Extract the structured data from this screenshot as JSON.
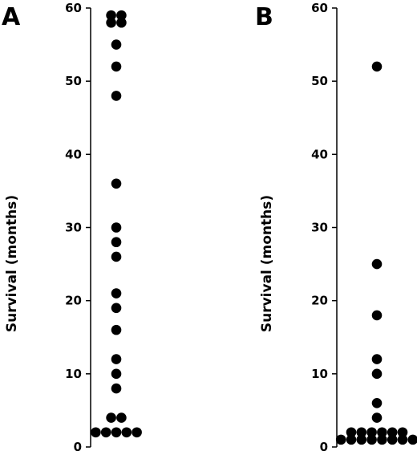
{
  "chart_data": [
    {
      "type": "scatter",
      "panel_label": "A",
      "ylabel": "Survival (months)",
      "xlabel": "",
      "ylim": [
        0,
        60
      ],
      "yticks": [
        0,
        10,
        20,
        30,
        40,
        50,
        60
      ],
      "tick_labels": [
        "0",
        "10",
        "20",
        "30",
        "40",
        "50",
        "60"
      ],
      "values": [
        59,
        59,
        58,
        58,
        55,
        52,
        48,
        36,
        30,
        28,
        26,
        21,
        19,
        16,
        12,
        10,
        8,
        4,
        4,
        2,
        2,
        2,
        2,
        2
      ],
      "grid": false,
      "color": "#000000"
    },
    {
      "type": "scatter",
      "panel_label": "B",
      "ylabel": "Survival (months)",
      "xlabel": "",
      "ylim": [
        0,
        60
      ],
      "yticks": [
        0,
        10,
        20,
        30,
        40,
        50,
        60
      ],
      "tick_labels": [
        "0",
        "10",
        "20",
        "30",
        "40",
        "50",
        "60"
      ],
      "values": [
        52,
        25,
        18,
        12,
        10,
        6,
        4,
        2,
        2,
        2,
        2,
        2,
        2,
        1,
        1,
        1,
        1,
        1,
        1,
        1,
        1
      ],
      "grid": false,
      "color": "#000000"
    }
  ]
}
